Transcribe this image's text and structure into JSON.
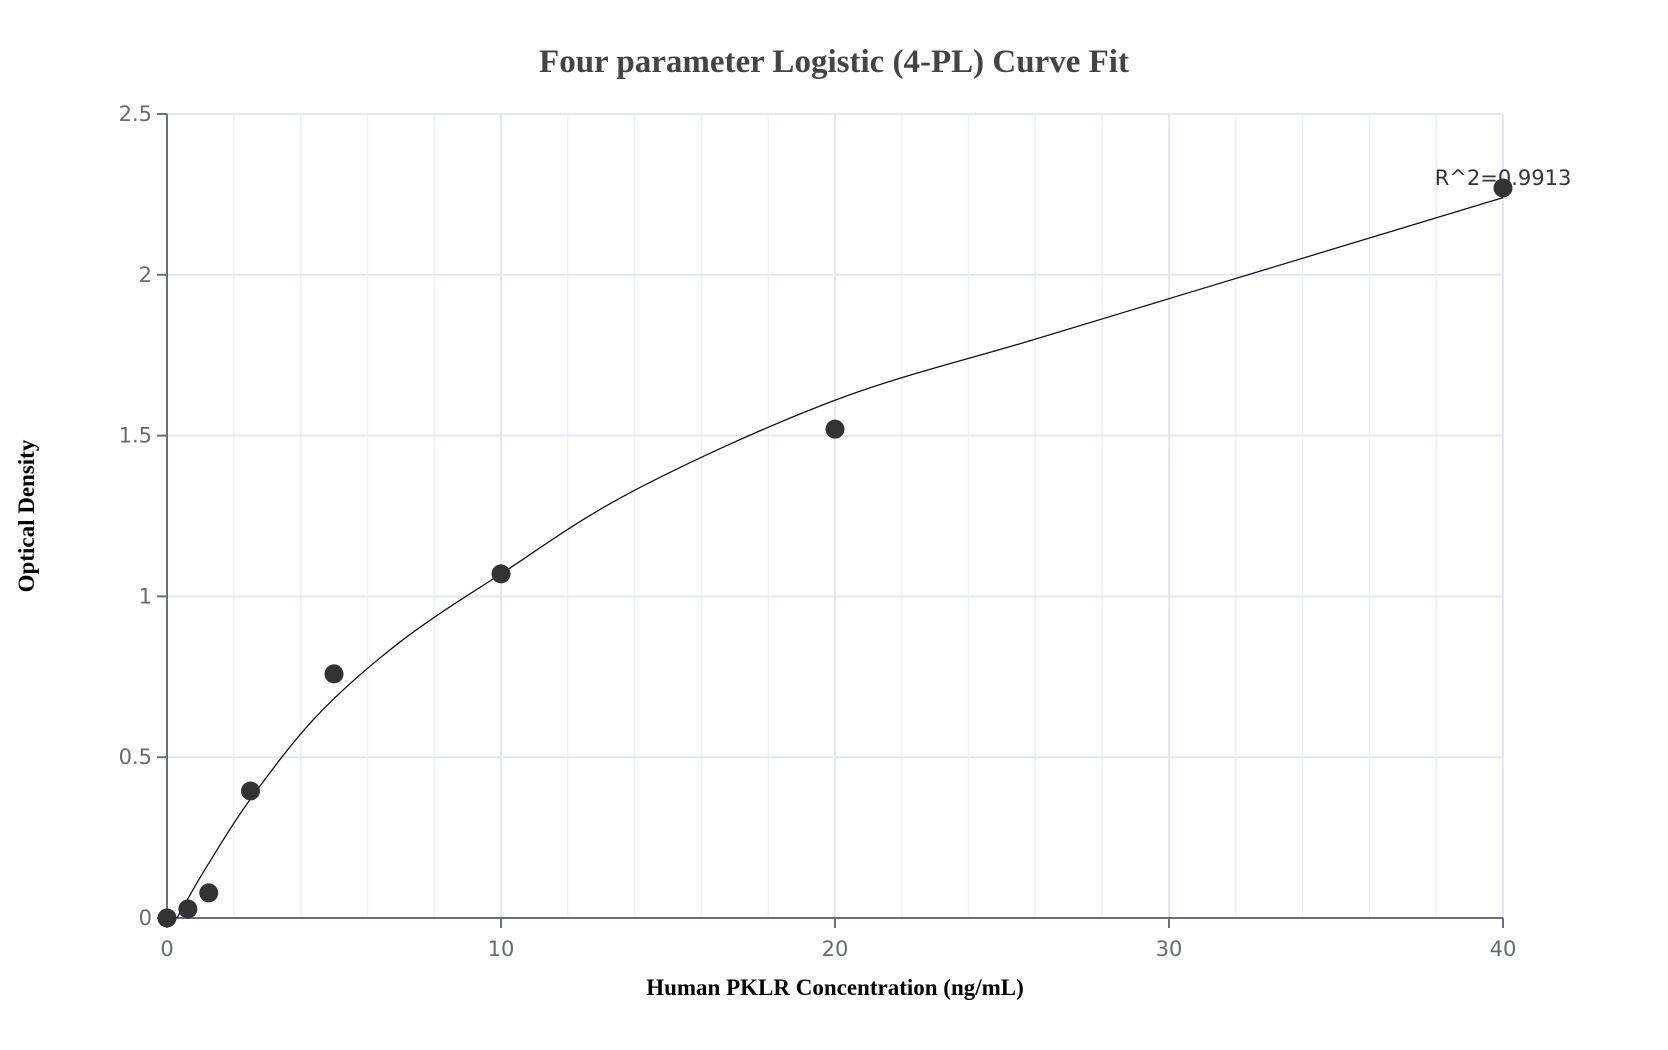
{
  "chart_data": {
    "type": "scatter",
    "title": "Four parameter Logistic (4-PL) Curve Fit",
    "xlabel": "Human PKLR Concentration (ng/mL)",
    "ylabel": "Optical Density",
    "xlim": [
      0,
      40
    ],
    "ylim": [
      0,
      2.5
    ],
    "x_ticks": [
      0,
      10,
      20,
      30,
      40
    ],
    "x_tick_labels": [
      "0",
      "10",
      "20",
      "30",
      "40"
    ],
    "y_ticks": [
      0,
      0.5,
      1,
      1.5,
      2,
      2.5
    ],
    "y_tick_labels": [
      "0",
      "0.5",
      "1",
      "1.5",
      "2",
      "2.5"
    ],
    "x_minor_step": 2,
    "grid": true,
    "legend": false,
    "series": [
      {
        "name": "Standard points",
        "type": "scatter",
        "x": [
          0,
          0.625,
          1.25,
          2.5,
          5,
          10,
          20,
          40
        ],
        "y": [
          0,
          0.028,
          0.078,
          0.395,
          0.759,
          1.07,
          1.52,
          2.27
        ]
      },
      {
        "name": "4-PL fit",
        "type": "line",
        "x": [
          0.3,
          0.625,
          1.25,
          2.5,
          4.5,
          7,
          10,
          14,
          20,
          26,
          33,
          40
        ],
        "y": [
          0.0,
          0.06,
          0.17,
          0.37,
          0.63,
          0.86,
          1.07,
          1.33,
          1.61,
          1.8,
          2.02,
          2.24
        ]
      }
    ],
    "annotations": [
      {
        "text": "R^2=0.9913",
        "x": 40,
        "y": 2.27
      }
    ]
  },
  "colors": {
    "point": "#333333",
    "curve": "#111111",
    "axis": "#6b6e76",
    "grid_major": "#e3e7f1",
    "grid_minor": "#eef1f8"
  }
}
